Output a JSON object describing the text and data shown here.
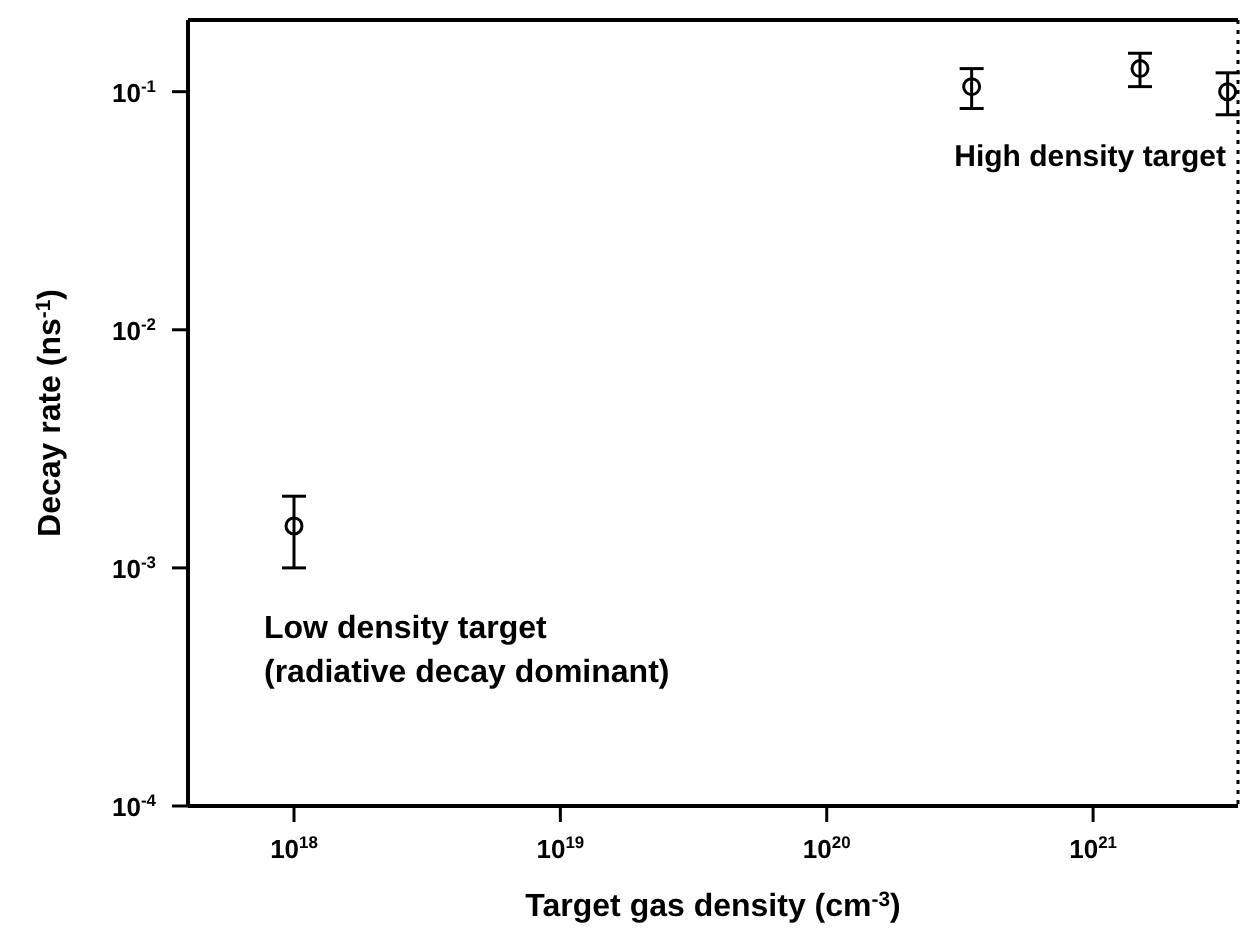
{
  "chart_data": {
    "type": "scatter",
    "xlabel": "Target gas density (cm$^{-3}$)",
    "ylabel": "Decay rate (ns$^{-1}$)",
    "annotations": [
      "High density target",
      "Low density target",
      "(radiative decay dominant)"
    ],
    "log": "xy",
    "marker": "circle",
    "grid": false,
    "legend": false,
    "xlim": [
      4e+17,
      3.5e+21
    ],
    "ylim": [
      0.0001,
      0.2
    ],
    "xticks": [
      {
        "value": 1e+18,
        "label": "10$^{18}$"
      },
      {
        "value": 1e+19,
        "label": "10$^{19}$"
      },
      {
        "value": 1e+20,
        "label": "10$^{20}$"
      },
      {
        "value": 1e+21,
        "label": "10$^{21}$"
      }
    ],
    "yticks": [
      {
        "value": 0.0001,
        "label": "10$^{-4}$"
      },
      {
        "value": 0.001,
        "label": "10$^{-3}$"
      },
      {
        "value": 0.01,
        "label": "10$^{-2}$"
      },
      {
        "value": 0.1,
        "label": "10$^{-1}$"
      }
    ],
    "series": [
      {
        "color": "#000000",
        "x": [
          1e+18,
          3.5e+20,
          1.5e+21,
          3.2e+21
        ],
        "values": [
          0.0015,
          0.105,
          0.125,
          0.1
        ],
        "errors": [
          [
            0.001,
            0.002
          ],
          [
            0.085,
            0.125
          ],
          [
            0.105,
            0.145
          ],
          [
            0.08,
            0.12
          ]
        ]
      }
    ]
  }
}
